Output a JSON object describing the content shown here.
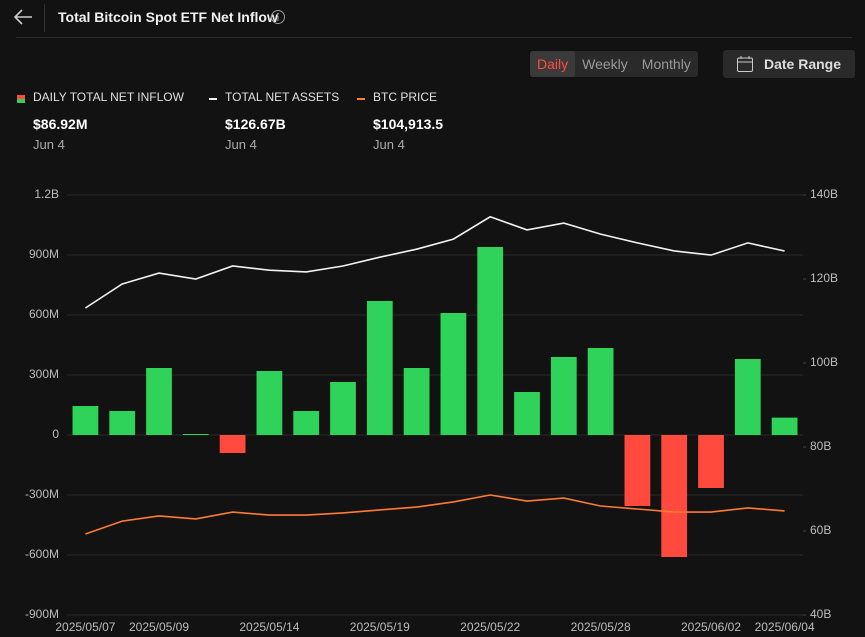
{
  "ui": {
    "title": "Total Bitcoin Spot ETF Net Inflow",
    "tabs": [
      "Daily",
      "Weekly",
      "Monthly"
    ],
    "active_tab": 0,
    "date_range": "Date Range"
  },
  "chart_data": {
    "type": "combo",
    "categories": [
      "2025/05/07",
      null,
      "2025/05/09",
      null,
      null,
      "2025/05/14",
      null,
      null,
      "2025/05/19",
      null,
      null,
      "2025/05/22",
      null,
      null,
      "2025/05/28",
      null,
      null,
      "2025/06/02",
      null,
      "2025/06/04"
    ],
    "series": [
      {
        "name": "DAILY TOTAL NET INFLOW",
        "type": "bar",
        "color": "#2fd35a",
        "negative_color": "#ff4a3d",
        "values": [
          145,
          120,
          335,
          5,
          -90,
          320,
          120,
          265,
          670,
          335,
          610,
          940,
          215,
          390,
          435,
          -355,
          -610,
          -265,
          380,
          86.92
        ],
        "latest": "$86.92M",
        "latest_date": "Jun 4"
      },
      {
        "name": "TOTAL NET ASSETS",
        "type": "line",
        "axis": "y2",
        "color": "#f2f2f2",
        "values": [
          113.1,
          118.8,
          121.4,
          120.0,
          123.1,
          122.1,
          121.7,
          123.1,
          125.2,
          127.1,
          129.5,
          134.8,
          131.7,
          133.3,
          130.7,
          128.6,
          126.7,
          125.7,
          128.6,
          126.67
        ],
        "latest": "$126.67B",
        "latest_date": "Jun 4"
      },
      {
        "name": "BTC PRICE",
        "type": "line",
        "axis": "y3",
        "color": "#ff7a33",
        "values": [
          96500,
          101200,
          103100,
          102000,
          104500,
          103400,
          103400,
          104200,
          105300,
          106300,
          108200,
          110700,
          108500,
          109600,
          106700,
          105600,
          104500,
          104500,
          106000,
          104913.5
        ],
        "latest": "$104,913.5",
        "latest_date": "Jun 4"
      }
    ],
    "ylim": [
      -900,
      1200
    ],
    "yticks": [
      {
        "value": -900,
        "label": "-900M"
      },
      {
        "value": -600,
        "label": "-600M"
      },
      {
        "value": -300,
        "label": "-300M"
      },
      0,
      {
        "value": 300,
        "label": "300M"
      },
      {
        "value": 600,
        "label": "600M"
      },
      {
        "value": 900,
        "label": "900M"
      },
      {
        "value": 1200,
        "label": "1.2B"
      }
    ],
    "y2lim": [
      40,
      140
    ],
    "y2ticks": [
      {
        "value": 40,
        "label": "40B"
      },
      {
        "value": 60,
        "label": "60B"
      },
      {
        "value": 80,
        "label": "80B"
      },
      {
        "value": 100,
        "label": "100B"
      },
      {
        "value": 120,
        "label": "120B"
      },
      {
        "value": 140,
        "label": "140B"
      }
    ],
    "y3lim": [
      67000,
      220000
    ],
    "grid": true
  }
}
